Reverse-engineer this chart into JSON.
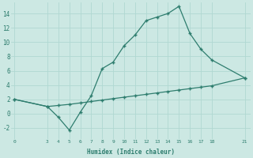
{
  "xlabel": "Humidex (Indice chaleur)",
  "line1_x": [
    0,
    3,
    4,
    5,
    6,
    7,
    8,
    9,
    10,
    11,
    12,
    13,
    14,
    15,
    16,
    17,
    18,
    21
  ],
  "line1_y": [
    2,
    1,
    -0.5,
    -2.3,
    0.2,
    2.5,
    6.3,
    7.2,
    9.5,
    11,
    13,
    13.5,
    14,
    15,
    11.2,
    9,
    7.5,
    5
  ],
  "line2_x": [
    0,
    3,
    4,
    5,
    6,
    7,
    8,
    9,
    10,
    11,
    12,
    13,
    14,
    15,
    16,
    17,
    18,
    21
  ],
  "line2_y": [
    2,
    1,
    1.15,
    1.3,
    1.5,
    1.7,
    1.9,
    2.1,
    2.3,
    2.5,
    2.7,
    2.9,
    3.1,
    3.3,
    3.5,
    3.7,
    3.9,
    5
  ],
  "line_color": "#2e7d6e",
  "bg_color": "#cce8e3",
  "grid_color": "#b0d8d2",
  "text_color": "#2e7d6e",
  "ylim": [
    -3.5,
    15.5
  ],
  "xlim": [
    -0.3,
    21.5
  ],
  "xticks": [
    0,
    3,
    4,
    5,
    6,
    7,
    8,
    9,
    10,
    11,
    12,
    13,
    14,
    15,
    16,
    17,
    18,
    21
  ],
  "yticks": [
    -2,
    0,
    2,
    4,
    6,
    8,
    10,
    12,
    14
  ],
  "marker": "+"
}
